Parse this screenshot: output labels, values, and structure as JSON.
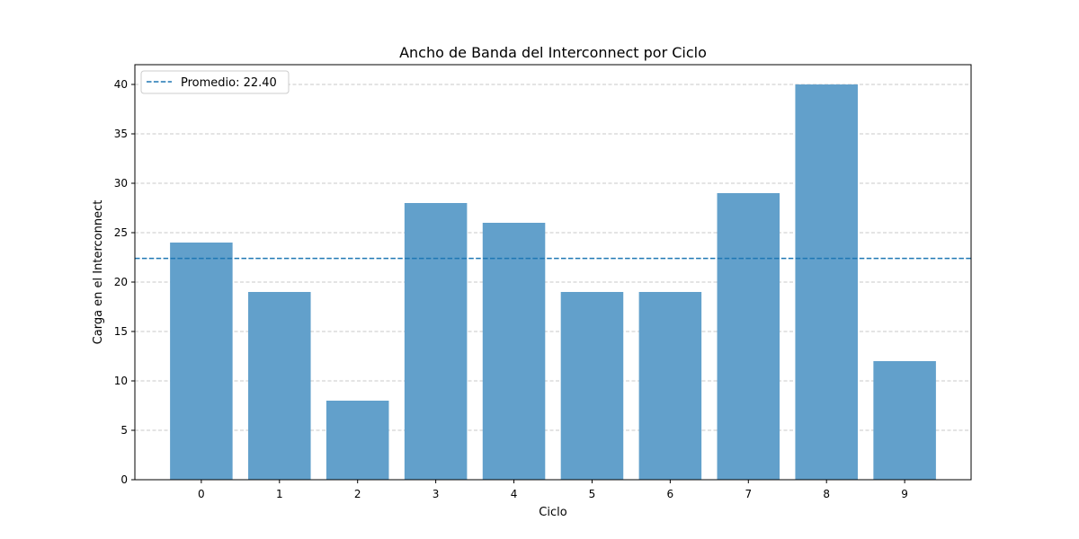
{
  "chart_data": {
    "type": "bar",
    "title": "Ancho de Banda del Interconnect por Ciclo",
    "xlabel": "Ciclo",
    "ylabel": "Carga en el Interconnect",
    "categories": [
      "0",
      "1",
      "2",
      "3",
      "4",
      "5",
      "6",
      "7",
      "8",
      "9"
    ],
    "values": [
      24,
      19,
      8,
      28,
      26,
      19,
      19,
      29,
      40,
      12
    ],
    "ylim": [
      0,
      42
    ],
    "yticks": [
      0,
      5,
      10,
      15,
      20,
      25,
      30,
      35,
      40
    ],
    "grid": "y-dashed",
    "legend_position": "top-left",
    "reference_line": {
      "label": "Promedio: 22.40",
      "value": 22.4,
      "style": "dashed"
    },
    "colors": {
      "bar": "#62a0cb",
      "reference_line": "#1f77b4",
      "grid": "#c8c8c8"
    }
  }
}
